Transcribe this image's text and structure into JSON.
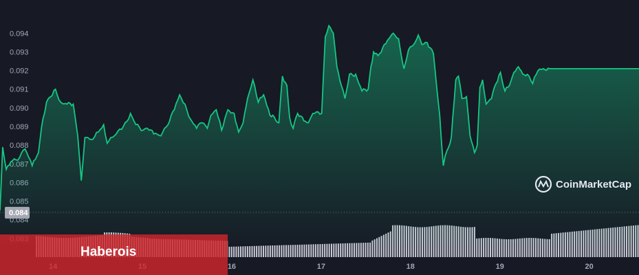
{
  "colors": {
    "background": "#171924",
    "line": "#16c784",
    "volume": "#c9ccd6",
    "overlay": "#d0262b",
    "price_tag": "#a6a9b3"
  },
  "watermark": {
    "icon": "coinmarketcap-logo-icon",
    "text": "CoinMarketCap"
  },
  "overlay_label": "Haberois",
  "current_price_label": "0.084",
  "chart_data": {
    "type": "area",
    "title": "",
    "xlabel": "",
    "ylabel": "",
    "x_ticks": [
      "14",
      "15",
      "16",
      "17",
      "18",
      "19",
      "20"
    ],
    "y_ticks": [
      "0.083",
      "0.084",
      "0.085",
      "0.086",
      "0.087",
      "0.088",
      "0.089",
      "0.090",
      "0.091",
      "0.092",
      "0.093",
      "0.094"
    ],
    "xlim": [
      13.4,
      20.55
    ],
    "ylim": [
      0.0827,
      0.0946
    ],
    "grid": false,
    "legend": "none",
    "current_price": 0.0844,
    "series": [
      {
        "values": [
          [
            13.4,
            0.0845
          ],
          [
            13.43,
            0.0879
          ],
          [
            13.47,
            0.0867
          ],
          [
            13.52,
            0.0871
          ],
          [
            13.6,
            0.0872
          ],
          [
            13.68,
            0.0878
          ],
          [
            13.76,
            0.0869
          ],
          [
            13.83,
            0.0876
          ],
          [
            13.88,
            0.0894
          ],
          [
            13.92,
            0.0903
          ],
          [
            13.97,
            0.0906
          ],
          [
            14.02,
            0.091
          ],
          [
            14.08,
            0.0903
          ],
          [
            14.15,
            0.0902
          ],
          [
            14.22,
            0.0902
          ],
          [
            14.27,
            0.0885
          ],
          [
            14.31,
            0.0861
          ],
          [
            14.35,
            0.0884
          ],
          [
            14.42,
            0.0883
          ],
          [
            14.5,
            0.0887
          ],
          [
            14.56,
            0.0891
          ],
          [
            14.6,
            0.0881
          ],
          [
            14.68,
            0.0885
          ],
          [
            14.78,
            0.089
          ],
          [
            14.86,
            0.0897
          ],
          [
            14.92,
            0.0891
          ],
          [
            15.0,
            0.0888
          ],
          [
            15.05,
            0.0889
          ],
          [
            15.12,
            0.0886
          ],
          [
            15.2,
            0.0885
          ],
          [
            15.28,
            0.0891
          ],
          [
            15.35,
            0.0899
          ],
          [
            15.41,
            0.0907
          ],
          [
            15.47,
            0.0902
          ],
          [
            15.53,
            0.0894
          ],
          [
            15.6,
            0.0889
          ],
          [
            15.66,
            0.0892
          ],
          [
            15.72,
            0.0889
          ],
          [
            15.76,
            0.0896
          ],
          [
            15.82,
            0.0899
          ],
          [
            15.88,
            0.0888
          ],
          [
            15.95,
            0.0899
          ],
          [
            16.02,
            0.0897
          ],
          [
            16.07,
            0.0887
          ],
          [
            16.12,
            0.0892
          ],
          [
            16.17,
            0.0905
          ],
          [
            16.23,
            0.0915
          ],
          [
            16.29,
            0.0903
          ],
          [
            16.35,
            0.0907
          ],
          [
            16.42,
            0.0896
          ],
          [
            16.47,
            0.0895
          ],
          [
            16.52,
            0.0892
          ],
          [
            16.56,
            0.0917
          ],
          [
            16.61,
            0.0912
          ],
          [
            16.64,
            0.0895
          ],
          [
            16.68,
            0.0889
          ],
          [
            16.73,
            0.0897
          ],
          [
            16.8,
            0.0893
          ],
          [
            16.85,
            0.0892
          ],
          [
            16.9,
            0.0897
          ],
          [
            17.0,
            0.0897
          ],
          [
            17.04,
            0.0938
          ],
          [
            17.08,
            0.0944
          ],
          [
            17.13,
            0.094
          ],
          [
            17.17,
            0.0922
          ],
          [
            17.22,
            0.0912
          ],
          [
            17.26,
            0.0905
          ],
          [
            17.31,
            0.0918
          ],
          [
            17.38,
            0.0918
          ],
          [
            17.45,
            0.0909
          ],
          [
            17.52,
            0.091
          ],
          [
            17.55,
            0.0922
          ],
          [
            17.58,
            0.093
          ],
          [
            17.63,
            0.0928
          ],
          [
            17.7,
            0.0934
          ],
          [
            17.75,
            0.0937
          ],
          [
            17.8,
            0.094
          ],
          [
            17.86,
            0.0937
          ],
          [
            17.92,
            0.0921
          ],
          [
            17.97,
            0.0931
          ],
          [
            18.03,
            0.0934
          ],
          [
            18.08,
            0.0939
          ],
          [
            18.12,
            0.0934
          ],
          [
            18.18,
            0.0935
          ],
          [
            18.25,
            0.0929
          ],
          [
            18.32,
            0.0896
          ],
          [
            18.36,
            0.0869
          ],
          [
            18.4,
            0.0877
          ],
          [
            18.45,
            0.0884
          ],
          [
            18.5,
            0.0915
          ],
          [
            18.53,
            0.0917
          ],
          [
            18.57,
            0.0905
          ],
          [
            18.62,
            0.0906
          ],
          [
            18.66,
            0.0885
          ],
          [
            18.71,
            0.0876
          ],
          [
            18.74,
            0.088
          ],
          [
            18.77,
            0.0911
          ],
          [
            18.8,
            0.0915
          ],
          [
            18.84,
            0.0902
          ],
          [
            18.9,
            0.0905
          ],
          [
            18.95,
            0.0913
          ],
          [
            19.0,
            0.0919
          ],
          [
            19.05,
            0.0909
          ],
          [
            19.1,
            0.0912
          ],
          [
            19.15,
            0.0919
          ],
          [
            19.2,
            0.0922
          ],
          [
            19.25,
            0.0918
          ],
          [
            19.3,
            0.0918
          ],
          [
            19.36,
            0.0913
          ],
          [
            19.42,
            0.092
          ],
          [
            19.48,
            0.0921
          ],
          [
            19.55,
            0.0921
          ]
        ]
      }
    ]
  }
}
